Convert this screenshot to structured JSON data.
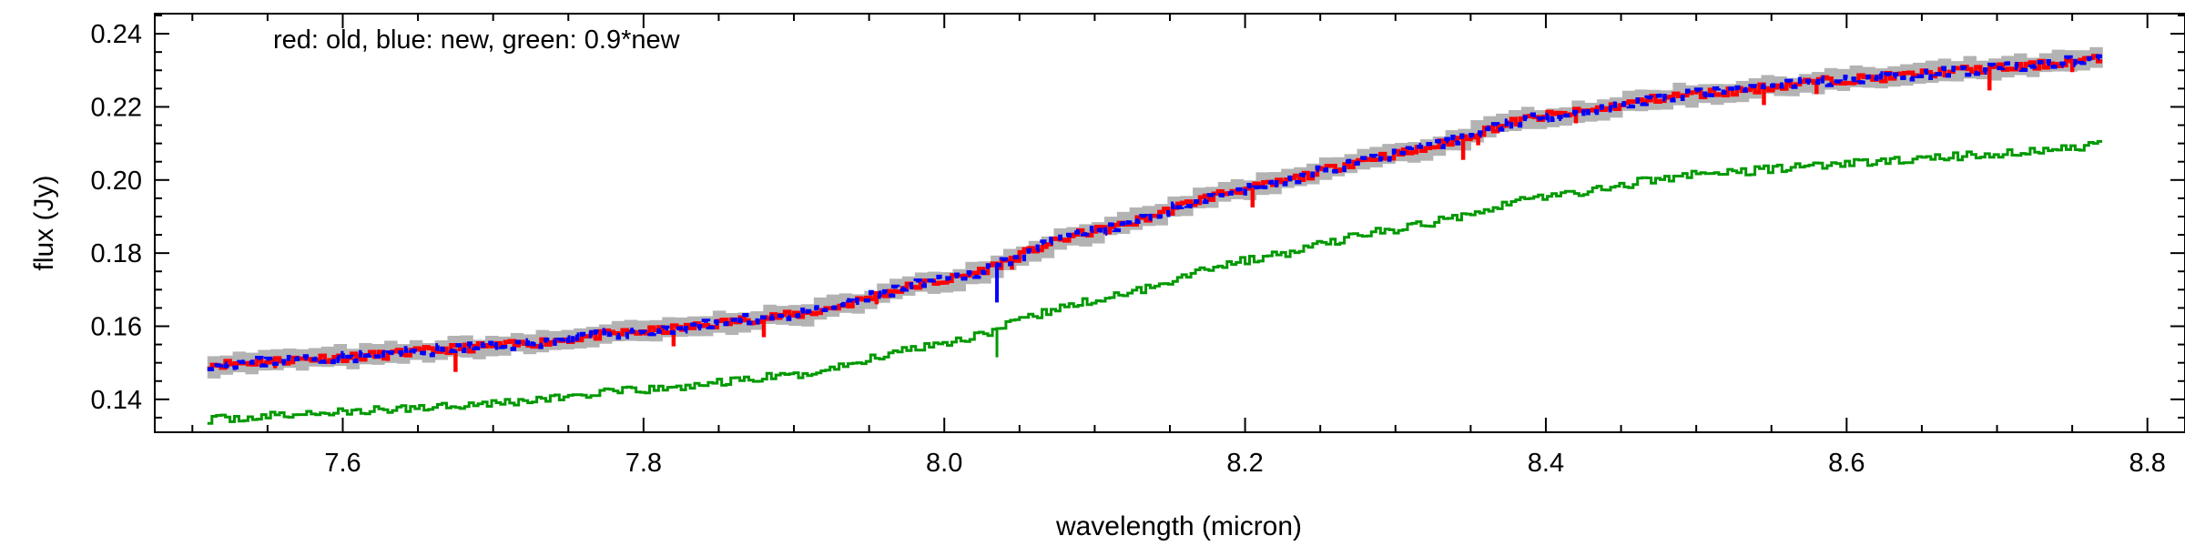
{
  "chart_data": {
    "type": "line",
    "xlabel": "wavelength (micron)",
    "ylabel": "flux (Jy)",
    "annotation": "red: old, blue: new, green: 0.9*new",
    "xlim": [
      7.475,
      8.825
    ],
    "ylim": [
      0.131,
      0.2455
    ],
    "x_ticks": [
      7.6,
      7.8,
      8.0,
      8.2,
      8.4,
      8.6,
      8.8
    ],
    "x_tick_labels": [
      "7.6",
      "7.8",
      "8.0",
      "8.2",
      "8.4",
      "8.6",
      "8.8"
    ],
    "y_ticks": [
      0.14,
      0.16,
      0.18,
      0.2,
      0.22,
      0.24
    ],
    "y_tick_labels": [
      "0.14",
      "0.16",
      "0.18",
      "0.20",
      "0.22",
      "0.24"
    ],
    "grid": false,
    "series": [
      {
        "role": "uncertainty band",
        "color": "#b3b3b3",
        "x": [
          7.51,
          7.6,
          7.7,
          7.8,
          7.9,
          8.0,
          8.1,
          8.2,
          8.3,
          8.4,
          8.5,
          8.6,
          8.7,
          8.77
        ],
        "values": [
          0.1495,
          0.1515,
          0.1545,
          0.1585,
          0.163,
          0.1725,
          0.186,
          0.1975,
          0.207,
          0.2175,
          0.2235,
          0.2275,
          0.2305,
          0.233
        ],
        "half_width": 0.0028
      },
      {
        "role": "old",
        "color": "#ff0000",
        "x": [
          7.51,
          7.6,
          7.7,
          7.8,
          7.9,
          8.0,
          8.1,
          8.2,
          8.3,
          8.4,
          8.5,
          8.6,
          8.7,
          8.77
        ],
        "values": [
          0.1495,
          0.1515,
          0.1545,
          0.1585,
          0.163,
          0.1725,
          0.186,
          0.1975,
          0.207,
          0.2175,
          0.2235,
          0.2275,
          0.2305,
          0.233
        ],
        "dips": [
          [
            7.555,
            0.1485
          ],
          [
            7.63,
            0.1505
          ],
          [
            7.675,
            0.1475
          ],
          [
            7.82,
            0.1545
          ],
          [
            7.88,
            0.157
          ],
          [
            7.955,
            0.166
          ],
          [
            8.045,
            0.1755
          ],
          [
            8.205,
            0.1925
          ],
          [
            8.345,
            0.2055
          ],
          [
            8.355,
            0.2095
          ],
          [
            8.42,
            0.2155
          ],
          [
            8.545,
            0.2205
          ],
          [
            8.58,
            0.2235
          ],
          [
            8.695,
            0.2245
          ],
          [
            8.75,
            0.2295
          ]
        ]
      },
      {
        "role": "new",
        "color": "#0000ff",
        "x": [
          7.51,
          7.6,
          7.7,
          7.8,
          7.9,
          8.0,
          8.1,
          8.2,
          8.3,
          8.4,
          8.5,
          8.6,
          8.7,
          8.77
        ],
        "values": [
          0.1495,
          0.1515,
          0.1545,
          0.1585,
          0.163,
          0.1725,
          0.186,
          0.1975,
          0.207,
          0.2175,
          0.2235,
          0.2275,
          0.2305,
          0.233
        ],
        "dips": [
          [
            8.035,
            0.1665
          ]
        ]
      },
      {
        "role": "0.9*new",
        "color": "#009900",
        "x": [
          7.51,
          7.6,
          7.7,
          7.8,
          7.9,
          8.0,
          8.1,
          8.2,
          8.3,
          8.4,
          8.5,
          8.6,
          8.7,
          8.77
        ],
        "values": [
          0.1345,
          0.1365,
          0.139,
          0.1425,
          0.1465,
          0.1555,
          0.167,
          0.178,
          0.1865,
          0.1955,
          0.2015,
          0.2045,
          0.207,
          0.2095
        ],
        "dips": [
          [
            8.035,
            0.1515
          ]
        ]
      }
    ]
  }
}
